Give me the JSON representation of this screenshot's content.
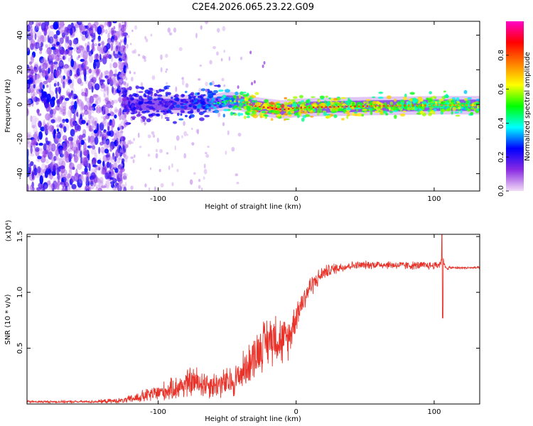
{
  "title": "C2E4.2026.065.23.22.G09",
  "chart_data": [
    {
      "type": "heatmap",
      "name": "spectrogram",
      "xlabel": "Height of straight line (km)",
      "ylabel": "Frequency (Hz)",
      "xlim": [
        -195,
        133
      ],
      "ylim": [
        -50,
        48
      ],
      "xticks": [
        -100,
        0,
        100
      ],
      "yticks": [
        -40,
        -20,
        0,
        20,
        40
      ],
      "xtick_labels": [
        "-100",
        "0",
        "100"
      ],
      "ytick_labels": [
        "-40",
        "-20",
        "0",
        "20",
        "40"
      ],
      "ridge": {
        "x": [
          -125,
          -100,
          -80,
          -60,
          -50,
          -40,
          -30,
          -20,
          -10,
          0,
          20,
          50,
          100,
          133
        ],
        "freq": [
          0,
          0,
          0,
          0.5,
          2,
          1.5,
          -1,
          -2,
          -3,
          -2,
          -1.5,
          -1,
          -0.5,
          -0.5
        ],
        "amp": [
          0.25,
          0.3,
          0.33,
          0.38,
          0.5,
          0.65,
          0.8,
          0.85,
          0.88,
          0.75,
          0.8,
          0.75,
          0.7,
          0.65
        ]
      },
      "noise_region_km": [
        -195,
        -123
      ]
    },
    {
      "type": "colorbar",
      "name": "amplitude-colorbar",
      "label": "Normalized spectral amplitude",
      "range": [
        0,
        1
      ],
      "ticks": [
        0.0,
        0.2,
        0.4,
        0.6,
        0.8
      ],
      "tick_labels": [
        "0.0",
        "0.2",
        "0.4",
        "0.6",
        "0.8"
      ],
      "colors": [
        "#f2dcf6",
        "#8a2be2",
        "#0000ff",
        "#00ffff",
        "#00ff00",
        "#ffff00",
        "#ff8000",
        "#ff0000",
        "#ff00c8"
      ]
    },
    {
      "type": "line",
      "name": "snr-plot",
      "xlabel": "Height of straight line (km)",
      "ylabel": "SNR (10 * v/v)",
      "scale_label": "(x10⁴)",
      "xlim": [
        -195,
        133
      ],
      "ylim": [
        0,
        1.52
      ],
      "xticks": [
        -100,
        0,
        100
      ],
      "yticks": [
        0.5,
        1.0,
        1.5
      ],
      "xtick_labels": [
        "-100",
        "0",
        "100"
      ],
      "ytick_labels": [
        "0.5",
        "1.0",
        "1.5"
      ],
      "color": "#e8332a",
      "series": {
        "x": [
          -195,
          -150,
          -125,
          -110,
          -90,
          -75,
          -60,
          -45,
          -35,
          -25,
          -15,
          -10,
          -5,
          0,
          10,
          20,
          30,
          40,
          60,
          80,
          100,
          104,
          106,
          108,
          112,
          133
        ],
        "mean": [
          0.02,
          0.02,
          0.03,
          0.07,
          0.13,
          0.2,
          0.17,
          0.2,
          0.35,
          0.52,
          0.62,
          0.55,
          0.6,
          0.8,
          1.05,
          1.18,
          1.22,
          1.24,
          1.25,
          1.24,
          1.24,
          1.25,
          1.3,
          1.22,
          1.22,
          1.22
        ],
        "spread": [
          0.01,
          0.01,
          0.02,
          0.05,
          0.08,
          0.12,
          0.1,
          0.12,
          0.15,
          0.18,
          0.2,
          0.18,
          0.15,
          0.12,
          0.08,
          0.05,
          0.04,
          0.03,
          0.03,
          0.03,
          0.03,
          0.03,
          0.03,
          0.02,
          0.01,
          0.01
        ],
        "spike": {
          "x": 106,
          "min": 0.77,
          "max": 1.52
        }
      }
    }
  ]
}
